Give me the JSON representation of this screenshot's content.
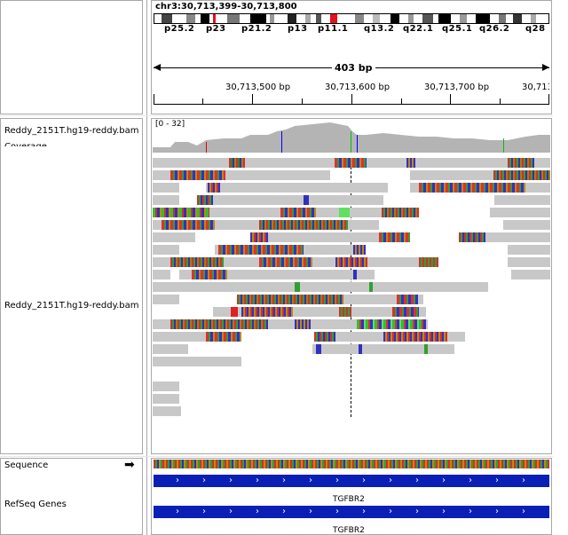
{
  "locus": "chr3:30,713,399-30,713,800",
  "cytobands": [
    "p25.2",
    "p23",
    "p21.2",
    "p13",
    "p11.1",
    "q13.2",
    "q22.1",
    "q25.1",
    "q26.2",
    "q28"
  ],
  "ruler": {
    "span_label": "403 bp",
    "ticks": [
      "30,713,500 bp",
      "30,713,600 bp",
      "30,713,700 bp",
      "30,713,"
    ]
  },
  "tracks": {
    "coverage_label": "Reddy_2151T.hg19-reddy.bam Coverage",
    "coverage_range": "[0 - 32]",
    "alignment_label": "Reddy_2151T.hg19-reddy.bam",
    "sequence_label": "Sequence",
    "refseq_label": "RefSeq Genes"
  },
  "genes": [
    "TGFBR2",
    "TGFBR2"
  ],
  "colors": {
    "centromere": "#e0141e",
    "gene": "#0a1fb5",
    "read": "#c8c8c8",
    "coverage": "#b4b4b4"
  }
}
